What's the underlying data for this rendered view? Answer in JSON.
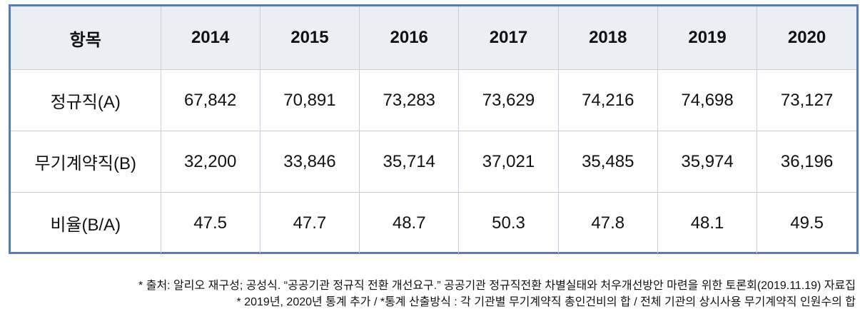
{
  "table": {
    "header": {
      "item": "항목",
      "years": [
        "2014",
        "2015",
        "2016",
        "2017",
        "2018",
        "2019",
        "2020"
      ]
    },
    "rows": [
      {
        "label": "정규직(A)",
        "values": [
          "67,842",
          "70,891",
          "73,283",
          "73,629",
          "74,216",
          "74,698",
          "73,127"
        ]
      },
      {
        "label": "무기계약직(B)",
        "values": [
          "32,200",
          "33,846",
          "35,714",
          "37,021",
          "35,485",
          "35,974",
          "36,196"
        ]
      },
      {
        "label": "비율(B/A)",
        "values": [
          "47.5",
          "47.7",
          "48.7",
          "50.3",
          "47.8",
          "48.1",
          "49.5"
        ]
      }
    ]
  },
  "footnotes": {
    "line1": "* 출처: 알리오 재구성; 공성식. “공공기관 정규직 전환 개선요구.” 공공기관 정규직전환 차별실태와 처우개선방안 마련을 위한 토론회(2019.11.19) 자료집",
    "line2": "* 2019년, 2020년 통계 추가 / *통계 산출방식 : 각 기관별 무기계약직 총인건비의 합 / 전체 기관의 상시사용 무기계약직 인원수의 합"
  }
}
